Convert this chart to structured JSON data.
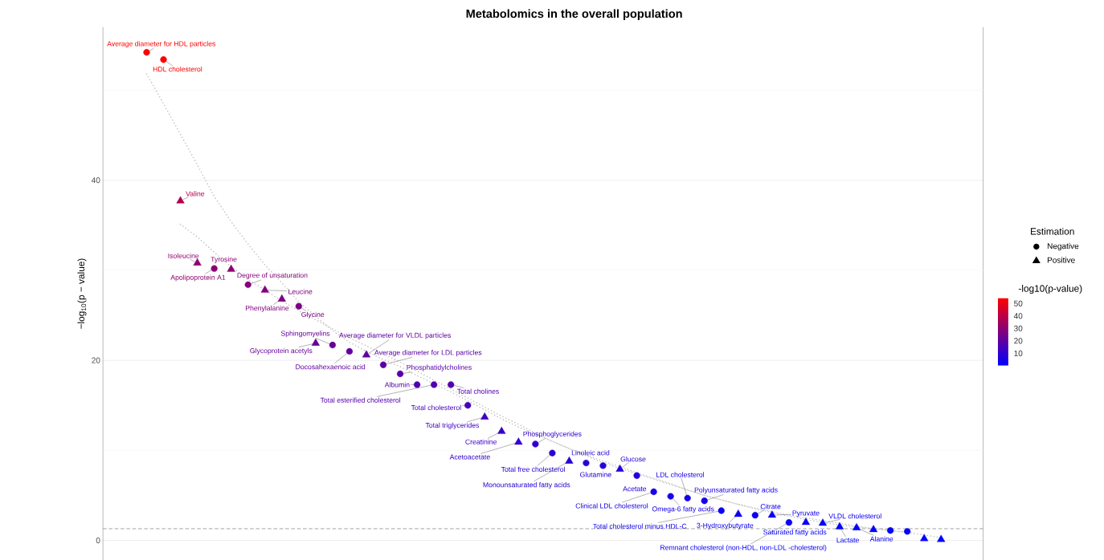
{
  "chart_data": {
    "type": "scatter",
    "title": "Metabolomics in the overall population",
    "ylabel": "−log$_{10}$(p − value)",
    "legend_title": "Estimation",
    "clabel": "-log10(p-value)",
    "categories": [
      null,
      null,
      null,
      null,
      null,
      null,
      null,
      null,
      null,
      null,
      null,
      null,
      null,
      null,
      null,
      null,
      null,
      null,
      null,
      null,
      null,
      null,
      null,
      null,
      null,
      null,
      null,
      null,
      null,
      null,
      null,
      null,
      null,
      null,
      null,
      null,
      null,
      null,
      null,
      null,
      null,
      null,
      null,
      null,
      null,
      null,
      null,
      null
    ],
    "series": [
      {
        "type": "line",
        "color": "#bebebe",
        "line_style": "dotted",
        "values": [
          51.8,
          48.5,
          45.1,
          41.7,
          38.2,
          35.4,
          32.9,
          30.6,
          28.6,
          26.5,
          24.9,
          23.3,
          22.0,
          21.0,
          20.1,
          19.3,
          18.3,
          17.4,
          16.5,
          15.5,
          14.5,
          13.5,
          12.6,
          11.8,
          11.0,
          10.2,
          9.4,
          8.6,
          8.0,
          7.4,
          6.8,
          6.2,
          5.6,
          5.0,
          4.5,
          4.0,
          3.5,
          3.1,
          2.7,
          2.3,
          2.0,
          1.7,
          1.5,
          1.3,
          1.1,
          0.9,
          null,
          null
        ]
      },
      {
        "type": "line",
        "color": "#bebebe",
        "line_style": "dotted",
        "values": [
          null,
          null,
          35.1,
          33.7,
          32.0,
          30.4,
          29.0,
          27.8,
          26.6,
          25.5,
          24.5,
          23.5,
          22.5,
          21.6,
          20.7,
          19.8,
          18.8,
          17.8,
          16.8,
          15.8,
          14.8,
          13.8,
          12.9,
          11.9,
          11.0,
          10.2,
          9.5,
          8.8,
          8.2,
          7.5,
          6.9,
          6.3,
          5.6,
          5.0,
          4.5,
          4.0,
          3.6,
          3.2,
          2.8,
          2.5,
          2.2,
          1.9,
          1.6,
          1.3,
          1.1,
          0.9,
          0.6,
          0.3
        ]
      },
      {
        "name": "Negative",
        "marker": "circle",
        "colors": [
          "#ff0000",
          "#fb0004",
          null,
          null,
          "#8e0071",
          null,
          "#85007a",
          null,
          null,
          "#7a0085",
          null,
          "#660099",
          "#62009d",
          null,
          "#5b00a4",
          "#5700a8",
          "#5100ae",
          "#5100ae",
          "#5100ae",
          "#4600b9",
          null,
          null,
          null,
          "#3200cd",
          "#2d00d2",
          null,
          "#2800d7",
          "#2700d8",
          null,
          "#2100de",
          "#1900e6",
          "#1700e8",
          "#1600e9",
          "#1400eb",
          "#0f00f0",
          null,
          "#0d00f2",
          null,
          "#0900f6",
          null,
          null,
          null,
          null,
          null,
          "#0500fa",
          "#0400fb",
          null,
          null
        ],
        "values": [
          54.2,
          53.4,
          null,
          null,
          30.2,
          null,
          28.4,
          null,
          null,
          26.0,
          null,
          21.7,
          21.0,
          null,
          19.5,
          18.5,
          17.3,
          17.3,
          17.3,
          15.0,
          null,
          null,
          null,
          10.7,
          9.7,
          null,
          8.6,
          8.3,
          null,
          7.2,
          5.4,
          4.9,
          4.7,
          4.4,
          3.3,
          null,
          2.8,
          null,
          2.0,
          null,
          null,
          null,
          null,
          null,
          1.1,
          1.0,
          null,
          null
        ],
        "cvalues": [
          54.2,
          53.4,
          null,
          null,
          30.2,
          null,
          28.4,
          null,
          null,
          26.0,
          null,
          21.7,
          21.0,
          null,
          19.5,
          18.5,
          17.3,
          17.3,
          17.3,
          15.0,
          null,
          null,
          null,
          10.7,
          9.7,
          null,
          8.6,
          8.3,
          null,
          7.2,
          5.4,
          4.9,
          4.7,
          4.4,
          3.3,
          null,
          2.8,
          null,
          2.0,
          null,
          null,
          null,
          null,
          null,
          1.1,
          1.0,
          null,
          null
        ]
      },
      {
        "name": "Positive",
        "marker": "triangle",
        "colors": [
          null,
          null,
          "#b1004e",
          "#90006f",
          null,
          "#8d0072",
          null,
          "#82007d",
          "#7e0081",
          null,
          "#670098",
          null,
          null,
          "#60009f",
          null,
          null,
          null,
          null,
          null,
          null,
          "#4000bf",
          "#3800c7",
          "#3300cc",
          null,
          null,
          "#2900d6",
          null,
          null,
          "#2500da",
          null,
          null,
          null,
          null,
          null,
          null,
          "#0d00f2",
          null,
          "#0d00f2",
          null,
          "#0900f6",
          "#0800f7",
          "#0700f8",
          "#0600f9",
          "#0500fa",
          null,
          null,
          "#0000ff",
          "#0000ff"
        ],
        "values": [
          null,
          null,
          37.7,
          30.8,
          null,
          30.1,
          null,
          27.8,
          26.8,
          null,
          21.9,
          null,
          null,
          20.6,
          null,
          null,
          null,
          null,
          null,
          null,
          13.7,
          12.1,
          10.9,
          null,
          null,
          8.8,
          null,
          null,
          7.9,
          null,
          null,
          null,
          null,
          null,
          null,
          2.9,
          null,
          2.8,
          null,
          2.0,
          1.9,
          1.5,
          1.4,
          1.2,
          null,
          null,
          0.2,
          0.1
        ],
        "cvalues": [
          null,
          null,
          37.7,
          30.8,
          null,
          30.1,
          null,
          27.8,
          26.8,
          null,
          21.9,
          null,
          null,
          20.6,
          null,
          null,
          null,
          null,
          null,
          null,
          13.7,
          12.1,
          10.9,
          null,
          null,
          8.8,
          null,
          null,
          7.9,
          null,
          null,
          null,
          null,
          null,
          null,
          2.9,
          null,
          2.8,
          null,
          2.0,
          1.9,
          1.5,
          1.4,
          1.2,
          null,
          null,
          0.2,
          0.1
        ]
      }
    ],
    "ylim": [
      -2.2,
      57
    ],
    "yticks": [
      0,
      {
        "value": 10,
        "label": null
      },
      20,
      {
        "value": 30,
        "label": null
      },
      40,
      {
        "value": 50,
        "label": null
      }
    ],
    "grid": "y",
    "legend": "right",
    "clim": [
      0.1,
      54.3
    ],
    "cticks": [
      10,
      20,
      30,
      40,
      50
    ],
    "ref_lines": [
      {
        "axis": "y",
        "value": 1.3,
        "color": "#7f7f7f",
        "line_style": "dashed"
      }
    ],
    "annotations": [
      "Average diameter for HDL particles",
      "HDL cholesterol",
      "Valine",
      "Isoleucine",
      "Apolipoprotein A1",
      "Tyrosine",
      "Degree of unsaturation",
      "Leucine",
      "Phenylalanine",
      "Glycine",
      "Glycoprotein acetyls",
      "Sphingomyelins",
      "Docosahexaenoic acid",
      "Average diameter for VLDL particles",
      "Average diameter for LDL particles",
      "Phosphatidylcholines",
      "Albumin",
      "Total esterified cholesterol",
      "Total cholines",
      "Total cholesterol",
      "Total triglycerides",
      "Creatinine",
      "Acetoacetate",
      "Phosphoglycerides",
      "Total free cholesterol",
      "Monounsaturated fatty acids",
      "Linoleic acid",
      "Glutamine",
      "Glucose",
      "Acetate",
      "Clinical LDL cholesterol",
      "Omega-6 fatty acids",
      "LDL cholesterol",
      "Polyunsaturated fatty acids",
      "Total cholesterol minus HDL-C",
      "3-Hydroxybutyrate",
      "Citrate",
      "Pyruvate",
      "Remnant cholesterol (non-HDL, non-LDL -cholesterol)",
      "Saturated fatty acids",
      "VLDL cholesterol",
      "Lactate",
      "Alanine"
    ]
  }
}
